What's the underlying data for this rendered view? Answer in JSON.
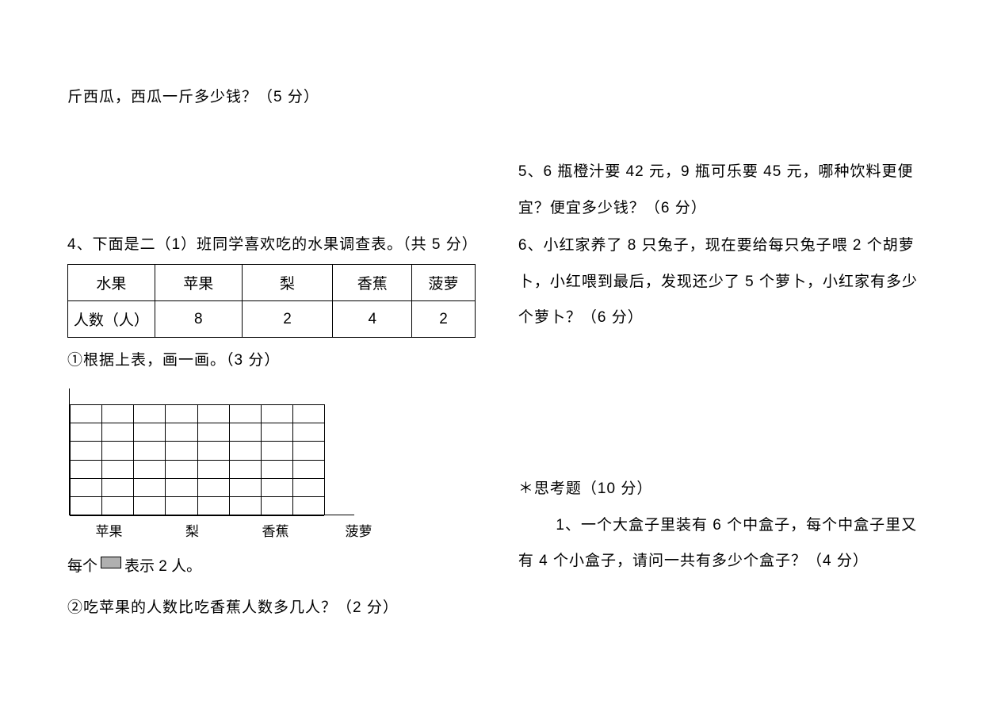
{
  "left": {
    "q3_tail": "斤西瓜，西瓜一斤多少钱？（5 分）",
    "q4_intro": "4、下面是二（1）班同学喜欢吃的水果调查表。（共 5 分）",
    "table": {
      "header": [
        "水果",
        "苹果",
        "梨",
        "香蕉",
        "菠萝"
      ],
      "row_label": "人数（人）",
      "values": [
        "8",
        "2",
        "4",
        "2"
      ],
      "col_widths": [
        "110px",
        "110px",
        "115px",
        "100px",
        "80px"
      ]
    },
    "sub1": "①根据上表，画一画。（3 分）",
    "chart": {
      "rows": 6,
      "cols": 8,
      "labels": [
        "苹果",
        "梨",
        "香蕉",
        "菠萝"
      ],
      "axis_color": "#000000",
      "grid_color": "#000000",
      "legend_box_bg": "#b0b0b0"
    },
    "legend_prefix": "每个",
    "legend_suffix": "表示 2 人。",
    "sub2": "②吃苹果的人数比吃香蕉人数多几人？（2 分）"
  },
  "right": {
    "q5_l1": "5、6 瓶橙汁要 42 元，9 瓶可乐要 45 元，哪种饮料更便",
    "q5_l2": "宜？便宜多少钱？（6 分）",
    "q6_l1": "6、小红家养了 8 只兔子，现在要给每只兔子喂 2 个胡萝",
    "q6_l2": "卜，小红喂到最后，发现还少了 5 个萝卜，小红家有多少",
    "q6_l3": "个萝卜？（6 分）",
    "think_title": "＊思考题（10 分）",
    "think_q1_l1": "1、一个大盒子里装有 6 个中盒子，每个中盒子里又",
    "think_q1_l2": "有 4 个小盒子，请问一共有多少个盒子？（4 分）"
  },
  "style": {
    "font_size_body": 19,
    "text_color": "#000000",
    "background": "#ffffff"
  }
}
